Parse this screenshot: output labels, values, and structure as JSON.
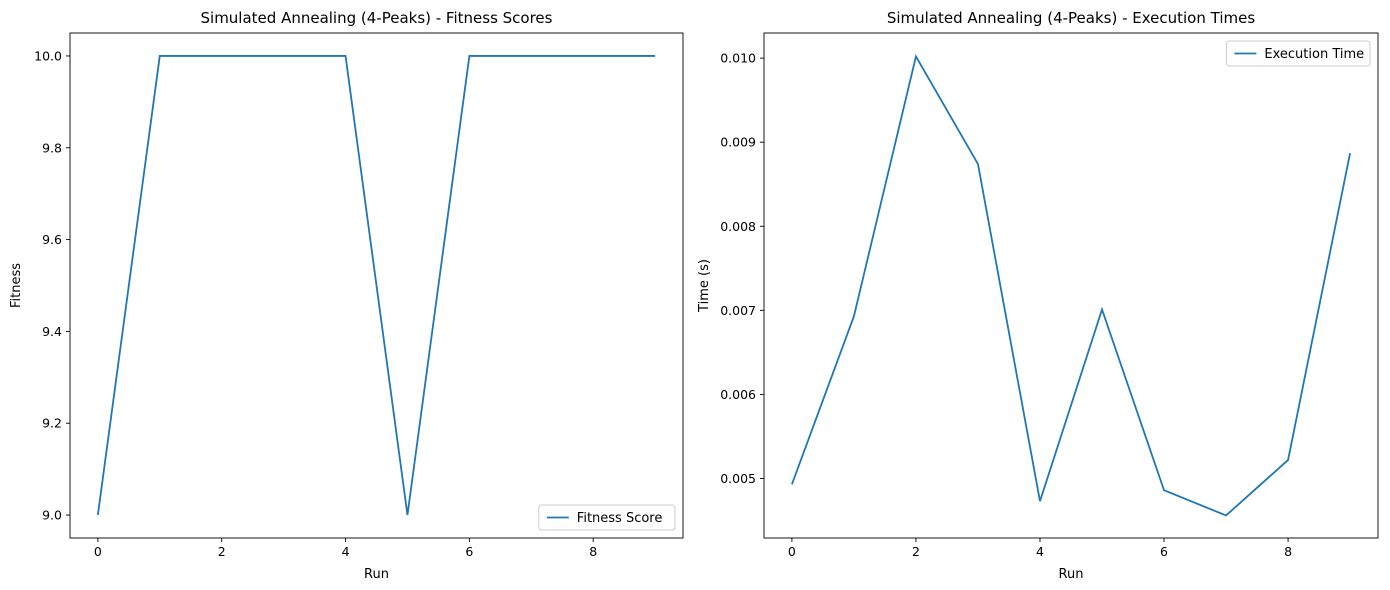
{
  "chart_data": [
    {
      "type": "line",
      "title": "Simulated Annealing (4-Peaks) - Fitness Scores",
      "xlabel": "Run",
      "ylabel": "Fitness",
      "x": [
        0,
        1,
        2,
        3,
        4,
        5,
        6,
        7,
        8,
        9
      ],
      "series": [
        {
          "name": "Fitness Score",
          "values": [
            9.0,
            10.0,
            10.0,
            10.0,
            10.0,
            9.0,
            10.0,
            10.0,
            10.0,
            10.0
          ]
        }
      ],
      "xlim": [
        -0.45,
        9.45
      ],
      "ylim": [
        8.95,
        10.05
      ],
      "xticks": [
        0,
        2,
        4,
        6,
        8
      ],
      "xtick_labels": [
        "0",
        "2",
        "4",
        "6",
        "8"
      ],
      "yticks": [
        9.0,
        9.2,
        9.4,
        9.6,
        9.8,
        10.0
      ],
      "ytick_labels": [
        "9.0",
        "9.2",
        "9.4",
        "9.6",
        "9.8",
        "10.0"
      ],
      "grid": false,
      "legend_position": "lower right",
      "line_color": "#1f77b4"
    },
    {
      "type": "line",
      "title": "Simulated Annealing (4-Peaks) - Execution Times",
      "xlabel": "Run",
      "ylabel": "Time (s)",
      "x": [
        0,
        1,
        2,
        3,
        4,
        5,
        6,
        7,
        8,
        9
      ],
      "series": [
        {
          "name": "Execution Time",
          "values": [
            0.00493,
            0.00693,
            0.01002,
            0.00874,
            0.00473,
            0.00701,
            0.00486,
            0.00456,
            0.00522,
            0.00887
          ]
        }
      ],
      "xlim": [
        -0.45,
        9.45
      ],
      "ylim": [
        0.004292,
        0.010299
      ],
      "xticks": [
        0,
        2,
        4,
        6,
        8
      ],
      "xtick_labels": [
        "0",
        "2",
        "4",
        "6",
        "8"
      ],
      "yticks": [
        0.005,
        0.006,
        0.007,
        0.008,
        0.009,
        0.01
      ],
      "ytick_labels": [
        "0.005",
        "0.006",
        "0.007",
        "0.008",
        "0.009",
        "0.010"
      ],
      "grid": false,
      "legend_position": "upper right",
      "line_color": "#1f77b4"
    }
  ]
}
